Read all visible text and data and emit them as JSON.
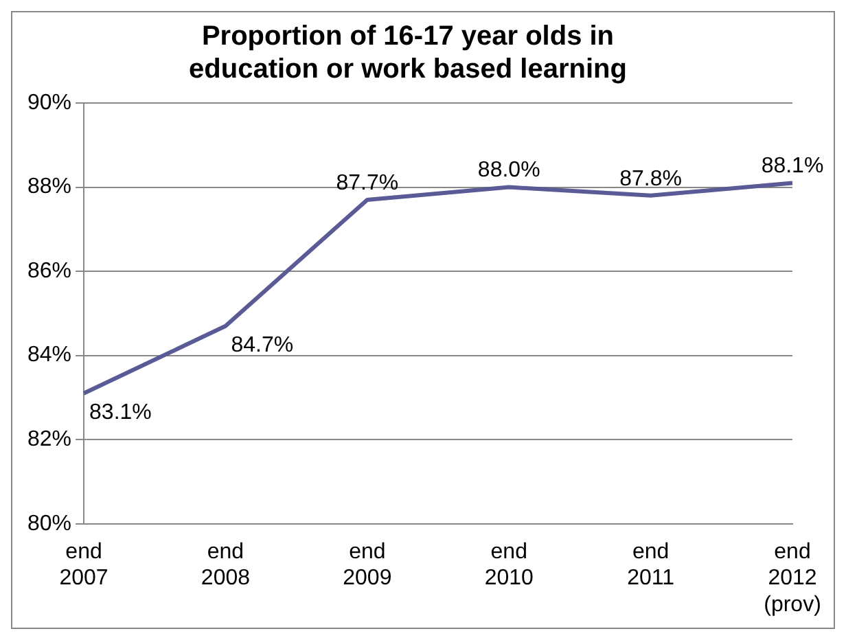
{
  "chart_data": {
    "type": "line",
    "title": "Proportion of 16-17 year olds in education or work based learning",
    "categories": [
      "end 2007",
      "end 2008",
      "end 2009",
      "end 2010",
      "end 2011",
      "end 2012 (prov)"
    ],
    "series": [
      {
        "color": "#5a5a96",
        "values": [
          83.1,
          84.7,
          87.7,
          88.0,
          87.8,
          88.1
        ],
        "value_labels": [
          "83.1%",
          "84.7%",
          "87.7%",
          "88.0%",
          "87.8%",
          "88.1%"
        ]
      }
    ],
    "ylim": [
      80,
      90
    ],
    "yticks": [
      {
        "value": 80,
        "label": "80%"
      },
      {
        "value": 82,
        "label": "82%"
      },
      {
        "value": 84,
        "label": "84%"
      },
      {
        "value": 86,
        "label": "86%"
      },
      {
        "value": 88,
        "label": "88%"
      },
      {
        "value": 90,
        "label": "90%"
      }
    ],
    "grid": "y",
    "legend": false,
    "marker": "none",
    "line_style": "solid"
  }
}
